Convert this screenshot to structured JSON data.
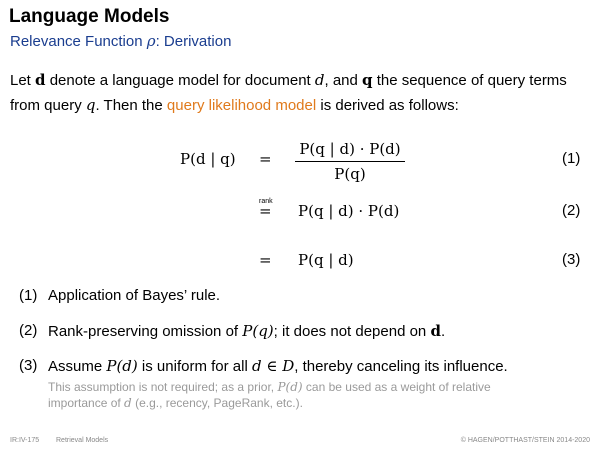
{
  "slide": {
    "title": "Language Models",
    "subtitle_prefix": "Relevance Function ",
    "subtitle_symbol": "ρ",
    "subtitle_suffix": ": Derivation"
  },
  "intro": {
    "p1": "Let ",
    "d": "d",
    "p2": " denote a language model for document ",
    "d_it": "d",
    "p3": ", and ",
    "q": "q",
    "p4": " the sequence of query terms from query ",
    "q_it": "q",
    "p5": ". Then the ",
    "link": "query likelihood model",
    "p6": " is derived as follows:"
  },
  "equations": {
    "lhs": "P(d | q)",
    "eq1_rel": "=",
    "eq1_num": "P(q | d) · P(d)",
    "eq1_den": "P(q)",
    "eq1_no": "(1)",
    "eq2_rel_label": "rank",
    "eq2_rel": "=",
    "eq2_rhs": "P(q | d) · P(d)",
    "eq2_no": "(2)",
    "eq3_rel": "=",
    "eq3_rhs": "P(q | d)",
    "eq3_no": "(3)"
  },
  "notes": {
    "n1_no": "(1)",
    "n1_text": "Application of Bayes’ rule.",
    "n2_no": "(2)",
    "n2_a": "Rank-preserving omission of ",
    "n2_math": "P(q)",
    "n2_b": "; it does not depend on ",
    "n2_d": "d",
    "n2_c": ".",
    "n3_no": "(3)",
    "n3_a": "Assume ",
    "n3_math1": "P(d)",
    "n3_b": " is uniform for all ",
    "n3_math2": "d ∈ D",
    "n3_c": ", thereby canceling its influence.",
    "n3_note_a": "This assumption is not required; as a prior, ",
    "n3_note_math": "P(d)",
    "n3_note_b": " can be used as a weight of relative importance of ",
    "n3_note_d": "d",
    "n3_note_c": " (e.g., recency, PageRank, etc.)."
  },
  "footer": {
    "page": "IR:IV-175",
    "section": "Retrieval Models",
    "copyright": "© HAGEN/POTTHAST/STEIN 2014-2020"
  },
  "colors": {
    "subtitle": "#1a3d8f",
    "link": "#e07a1c",
    "note": "#9a9a9a"
  }
}
